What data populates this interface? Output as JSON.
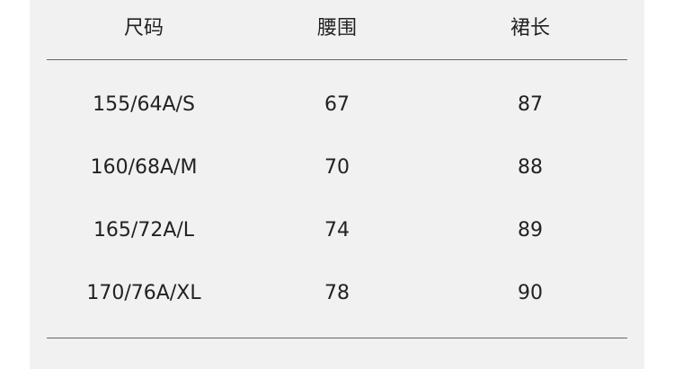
{
  "table": {
    "headers": [
      "尺码",
      "腰围",
      "裙长"
    ],
    "rows": [
      [
        "155/64A/S",
        "67",
        "87"
      ],
      [
        "160/68A/M",
        "70",
        "88"
      ],
      [
        "165/72A/L",
        "74",
        "89"
      ],
      [
        "170/76A/XL",
        "78",
        "90"
      ]
    ]
  }
}
